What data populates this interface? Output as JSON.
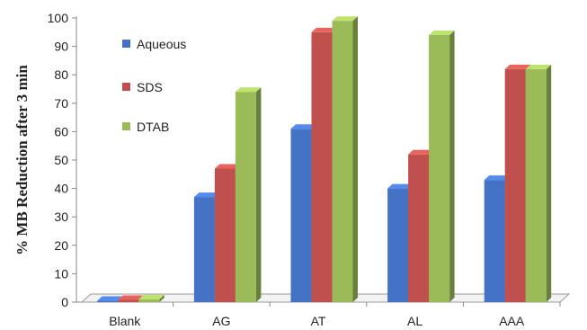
{
  "chart_data": {
    "type": "bar",
    "categories": [
      "Blank",
      "AG",
      "AT",
      "AL",
      "AAA"
    ],
    "series": [
      {
        "name": "Aqueous",
        "values": [
          0.5,
          37,
          61,
          40,
          43
        ],
        "color": "#4472C4"
      },
      {
        "name": "SDS",
        "values": [
          0.8,
          47,
          95,
          52,
          82
        ],
        "color": "#C0504D"
      },
      {
        "name": "DTAB",
        "values": [
          1.0,
          74,
          99,
          94,
          82
        ],
        "color": "#9BBB59"
      }
    ],
    "ylabel": "% MB Reduction after 3 min",
    "xlabel": "",
    "ylim": [
      0,
      100
    ],
    "yticks": [
      0,
      10,
      20,
      30,
      40,
      50,
      60,
      70,
      80,
      90,
      100
    ],
    "legend_position": "top-left",
    "grid": false
  }
}
